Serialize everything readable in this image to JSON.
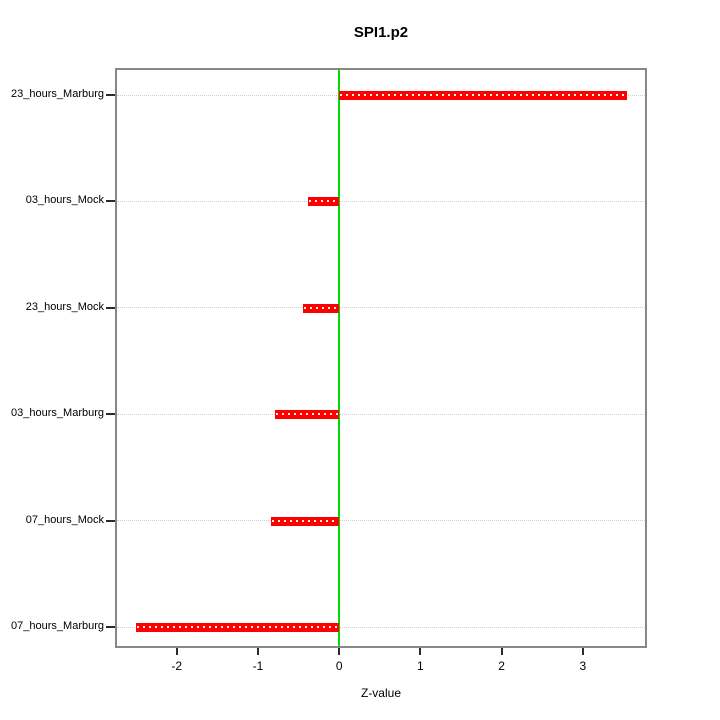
{
  "chart_data": {
    "type": "bar",
    "orientation": "horizontal",
    "title": "SPI1.p2",
    "xlabel": "Z-value",
    "categories": [
      "23_hours_Marburg",
      "03_hours_Mock",
      "23_hours_Mock",
      "03_hours_Marburg",
      "07_hours_Mock",
      "07_hours_Marburg"
    ],
    "values": [
      3.55,
      -0.38,
      -0.45,
      -0.79,
      -0.84,
      -2.5
    ],
    "xticks": [
      "-2",
      "-1",
      "0",
      "1",
      "2",
      "3"
    ],
    "xtick_values": [
      -2,
      -1,
      0,
      1,
      2,
      3
    ],
    "xlim": [
      -2.76,
      3.79
    ],
    "bar_color": "#ff0000",
    "zero_line_color": "#00dd00",
    "gridline_color": "#cfcfcf",
    "gridline_style": "dotted",
    "frame_color": "#878787",
    "legend": "none"
  }
}
